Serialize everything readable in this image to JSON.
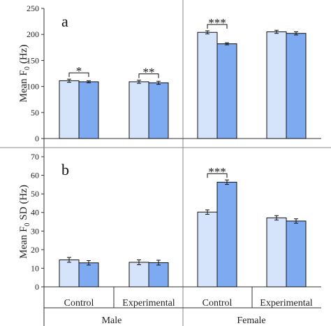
{
  "colors": {
    "control_fill": "#d6e4fb",
    "experimental_fill": "#7eaaf1",
    "bar_stroke": "#111111",
    "axis": "#333333",
    "divider": "#888888"
  },
  "labels": {
    "ylabel_a": "Mean F",
    "ylabel_a_sub": "0",
    "ylabel_a_unit": "(Hz)",
    "ylabel_b": "Mean F",
    "ylabel_b_sub": "0",
    "ylabel_b_unit": "SD (Hz)"
  },
  "x_axis": {
    "categories": [
      "Control",
      "Experimental",
      "Control",
      "Experimental"
    ],
    "groups": [
      "Male",
      "Female"
    ]
  },
  "chart_data": [
    {
      "type": "bar",
      "panel": "a",
      "ylabel": "Mean F0 (Hz)",
      "ylim": [
        0,
        250
      ],
      "yticks": [
        0,
        50,
        100,
        150,
        200,
        250
      ],
      "categories": [
        "Male Control",
        "Male Experimental",
        "Female Control",
        "Female Experimental"
      ],
      "series": [
        {
          "values": [
            111,
            109,
            204,
            205
          ],
          "errors": [
            3,
            3,
            3,
            3
          ]
        },
        {
          "values": [
            109,
            107,
            182,
            202
          ],
          "errors": [
            2,
            3,
            2,
            3
          ]
        }
      ],
      "significance": [
        {
          "category_index": 0,
          "label": "*"
        },
        {
          "category_index": 1,
          "label": "**"
        },
        {
          "category_index": 2,
          "label": "***"
        }
      ]
    },
    {
      "type": "bar",
      "panel": "b",
      "ylabel": "Mean F0 SD (Hz)",
      "ylim": [
        0,
        70
      ],
      "yticks": [
        0,
        10,
        20,
        30,
        40,
        50,
        60,
        70
      ],
      "categories": [
        "Male Control",
        "Male Experimental",
        "Female Control",
        "Female Experimental"
      ],
      "series": [
        {
          "values": [
            14.5,
            13.2,
            40.2,
            37.1
          ],
          "errors": [
            1.3,
            1.3,
            1.2,
            1.2
          ]
        },
        {
          "values": [
            12.9,
            13.0,
            56.3,
            35.4
          ],
          "errors": [
            1.2,
            1.3,
            1.2,
            1.2
          ]
        }
      ],
      "significance": [
        {
          "category_index": 2,
          "label": "***"
        }
      ]
    }
  ]
}
